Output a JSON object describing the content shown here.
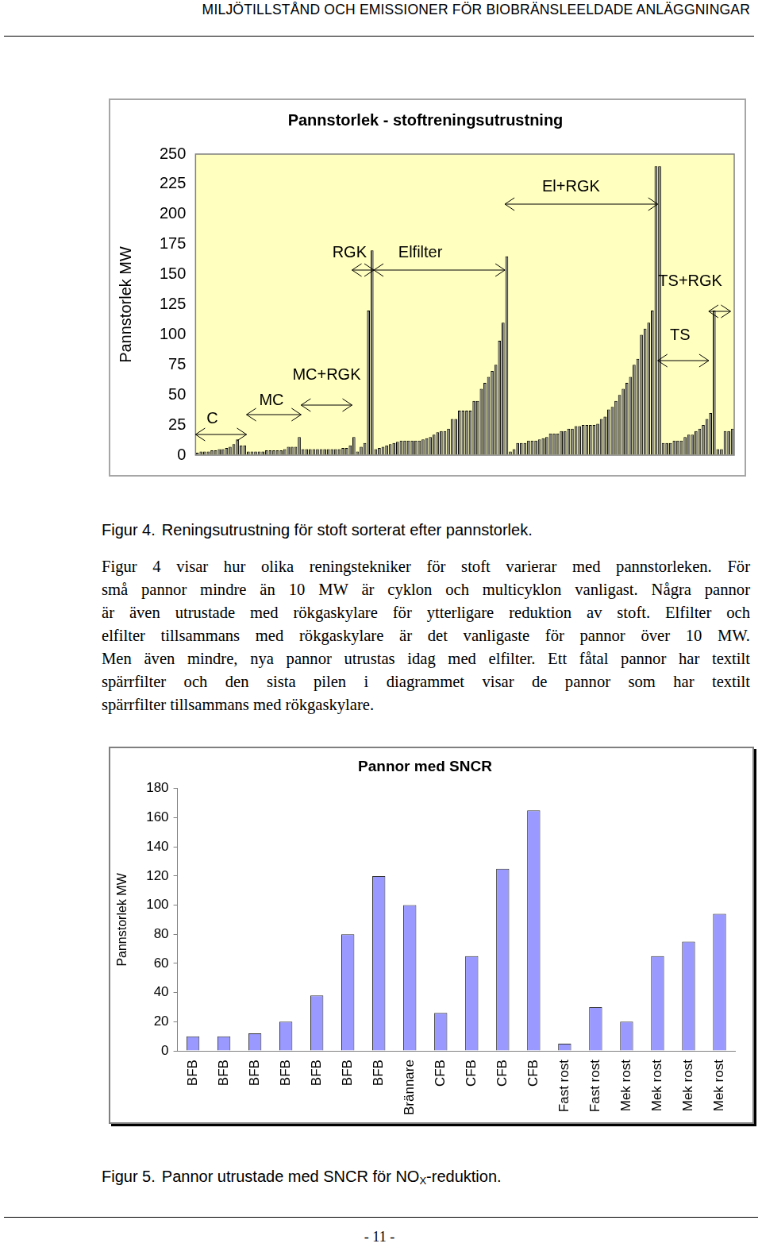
{
  "header": "MILJÖTILLSTÅND OCH EMISSIONER FÖR BIOBRÄNSLEELDADE ANLÄGGNINGAR",
  "chart_data": [
    {
      "type": "bar",
      "title": "Pannstorlek - stoftreningsutrustning",
      "y_label": "Pannstorlek MW",
      "values": [
        2,
        3,
        3,
        3,
        4,
        4,
        5,
        5,
        6,
        7,
        9,
        13,
        8,
        8,
        3,
        3,
        3,
        3,
        3,
        4,
        4,
        4,
        4,
        4,
        5,
        7,
        7,
        7,
        15,
        5,
        5,
        5,
        5,
        5,
        5,
        5,
        5,
        5,
        5,
        5,
        6,
        6,
        8,
        15,
        3,
        7,
        10,
        120,
        170,
        5,
        6,
        7,
        8,
        9,
        10,
        11,
        12,
        12,
        12,
        12,
        12,
        12,
        13,
        14,
        15,
        17,
        19,
        20,
        20,
        22,
        30,
        30,
        37,
        37,
        37,
        37,
        45,
        45,
        55,
        60,
        65,
        70,
        75,
        95,
        110,
        165,
        3,
        5,
        10,
        10,
        10,
        12,
        12,
        12,
        13,
        14,
        15,
        18,
        18,
        18,
        20,
        20,
        22,
        22,
        24,
        24,
        25,
        25,
        25,
        25,
        26,
        30,
        32,
        38,
        40,
        45,
        50,
        55,
        60,
        65,
        75,
        80,
        100,
        105,
        110,
        120,
        240,
        240,
        10,
        10,
        10,
        12,
        12,
        12,
        15,
        17,
        17,
        20,
        22,
        25,
        30,
        35,
        120,
        5,
        5,
        20,
        20,
        22
      ],
      "color": "#808080",
      "ylim": [
        0,
        250
      ],
      "yticks": [
        0,
        25,
        50,
        75,
        100,
        125,
        150,
        175,
        200,
        225,
        250
      ],
      "grid": false,
      "tick_labels": "y",
      "groups": [
        {
          "label": "C",
          "start": 0,
          "end": 13
        },
        {
          "label": "MC",
          "start": 14,
          "end": 28
        },
        {
          "label": "MC+RGK",
          "start": 29,
          "end": 42
        },
        {
          "label": "RGK",
          "start": 43,
          "end": 48
        },
        {
          "label": "Elfilter",
          "start": 49,
          "end": 84
        },
        {
          "label": "El+RGK",
          "start": 85,
          "end": 126
        },
        {
          "label": "TS+RGK",
          "start": 141,
          "end": 146
        },
        {
          "label": "TS",
          "start": 127,
          "end": 140
        }
      ]
    },
    {
      "type": "bar",
      "title": "Pannor med SNCR",
      "y_label": "Pannstorlek MW",
      "categories": [
        "BFB",
        "BFB",
        "BFB",
        "BFB",
        "BFB",
        "BFB",
        "BFB",
        "Brännare",
        "CFB",
        "CFB",
        "CFB",
        "CFB",
        "Fast rost",
        "Fast rost",
        "Mek rost",
        "Mek rost",
        "Mek rost",
        "Mek rost"
      ],
      "values": [
        10,
        10,
        12,
        20,
        38,
        80,
        120,
        100,
        26,
        65,
        125,
        165,
        5,
        30,
        20,
        65,
        75,
        94
      ],
      "color": "#9999ff",
      "ylim": [
        0,
        180
      ],
      "yticks": [
        0,
        20,
        40,
        60,
        80,
        100,
        120,
        140,
        160,
        180
      ],
      "grid": false
    }
  ],
  "captions": [
    {
      "label": "Figur 4.",
      "text": "Reningsutrustning för stoft sorterat efter pannstorlek."
    },
    {
      "label": "Figur 5.",
      "text": "Pannor utrustade med SNCR för NO",
      "subscript": "X",
      "text_after": "-reduktion."
    }
  ],
  "paragraph_lines": [
    "Figur 4 visar hur olika reningstekniker för stoft varierar med pannstorleken. För",
    "små pannor mindre än 10 MW är cyklon och multicyklon vanligast. Några pannor",
    "är även utrustade med rökgaskylare för ytterligare reduktion av stoft. Elfilter och",
    "elfilter tillsammans med rökgaskylare är det vanligaste för pannor över 10 MW.",
    "Men även mindre, nya pannor utrustas idag med elfilter. Ett fåtal pannor har textilt",
    "spärrfilter och den sista pilen i diagrammet visar de pannor som har textilt",
    "spärrfilter tillsammans med rökgaskylare."
  ],
  "page_number": "- 11 -"
}
